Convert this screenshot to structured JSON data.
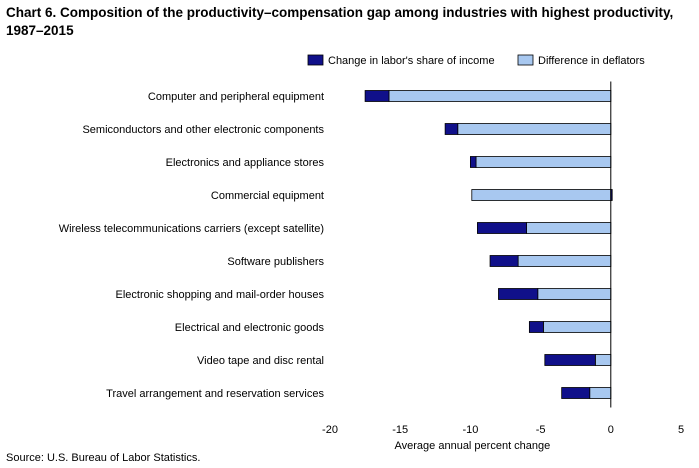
{
  "chart_data": {
    "type": "bar",
    "orientation": "horizontal",
    "stacked": true,
    "title": "Chart 6. Composition of the productivity–compensation gap among industries with highest productivity, 1987–2015",
    "xlabel": "Average annual percent change",
    "ylabel": "",
    "xlim": [
      -20,
      5
    ],
    "xticks": [
      "-20",
      "-15",
      "-10",
      "-5",
      "0",
      "5"
    ],
    "tick_values": [
      -20,
      -15,
      -10,
      -5,
      0,
      5
    ],
    "grid": false,
    "legend_position": "top-right",
    "categories": [
      "Computer and peripheral equipment",
      "Semiconductors and other electronic components",
      "Electronics and appliance stores",
      "Commercial equipment",
      "Wireless telecommunications carriers (except satellite)",
      "Software publishers",
      "Electronic shopping and mail-order houses",
      "Electrical and electronic goods",
      "Video tape and disc rental",
      "Travel arrangement and reservation services"
    ],
    "series": [
      {
        "name": "Difference in deflators",
        "color": "#a8c8f0",
        "values": [
          -15.8,
          -10.9,
          -9.6,
          -9.9,
          -6.0,
          -6.6,
          -5.2,
          -4.8,
          -1.1,
          -1.5
        ]
      },
      {
        "name": "Change in labor's share of income",
        "color": "#10108a",
        "values": [
          -1.7,
          -0.9,
          -0.4,
          0.1,
          -3.5,
          -2.0,
          -2.8,
          -1.0,
          -3.6,
          -2.0
        ]
      }
    ],
    "source": "Source: U.S. Bureau of Labor Statistics."
  }
}
